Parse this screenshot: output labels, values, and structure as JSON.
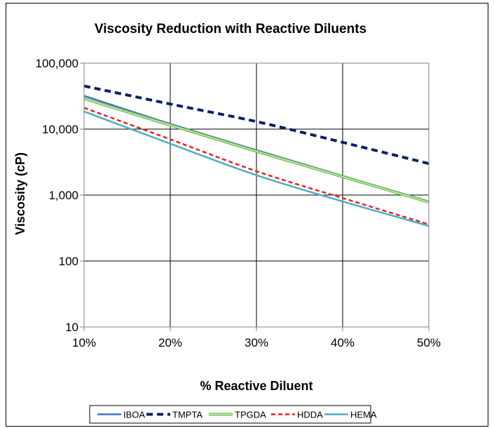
{
  "chart_data": {
    "type": "line",
    "title": "Viscosity Reduction with Reactive Diluents",
    "xlabel": "% Reactive Diluent",
    "ylabel": "Viscosity (cP)",
    "x": [
      10,
      20,
      30,
      40,
      50
    ],
    "x_tick_labels": [
      "10%",
      "20%",
      "30%",
      "40%",
      "50%"
    ],
    "xlim": [
      10,
      50
    ],
    "y_scale": "log",
    "ylim": [
      10,
      100000
    ],
    "y_ticks": [
      10,
      100,
      1000,
      10000,
      100000
    ],
    "y_tick_labels": [
      "10",
      "100",
      "1,000",
      "10,000",
      "100,000"
    ],
    "grid": true,
    "legend_position": "bottom",
    "series": [
      {
        "name": "IBOA",
        "color": "#4472C4",
        "dash": "solid",
        "values": [
          32000,
          12000,
          4800,
          1950,
          800
        ]
      },
      {
        "name": "TMPTA",
        "color": "#0A1F6B",
        "dash": "dashed",
        "values": [
          45000,
          24000,
          13000,
          6300,
          3000
        ]
      },
      {
        "name": "TPGDA",
        "color": "#6FBF4A",
        "dash": "double",
        "values": [
          29000,
          11500,
          4600,
          1900,
          780
        ]
      },
      {
        "name": "HDDA",
        "color": "#E8221C",
        "dash": "dotted",
        "values": [
          21000,
          7000,
          2300,
          900,
          360
        ]
      },
      {
        "name": "HEMA",
        "color": "#4BACC6",
        "dash": "solid",
        "values": [
          18500,
          6000,
          2000,
          800,
          340
        ]
      }
    ]
  }
}
